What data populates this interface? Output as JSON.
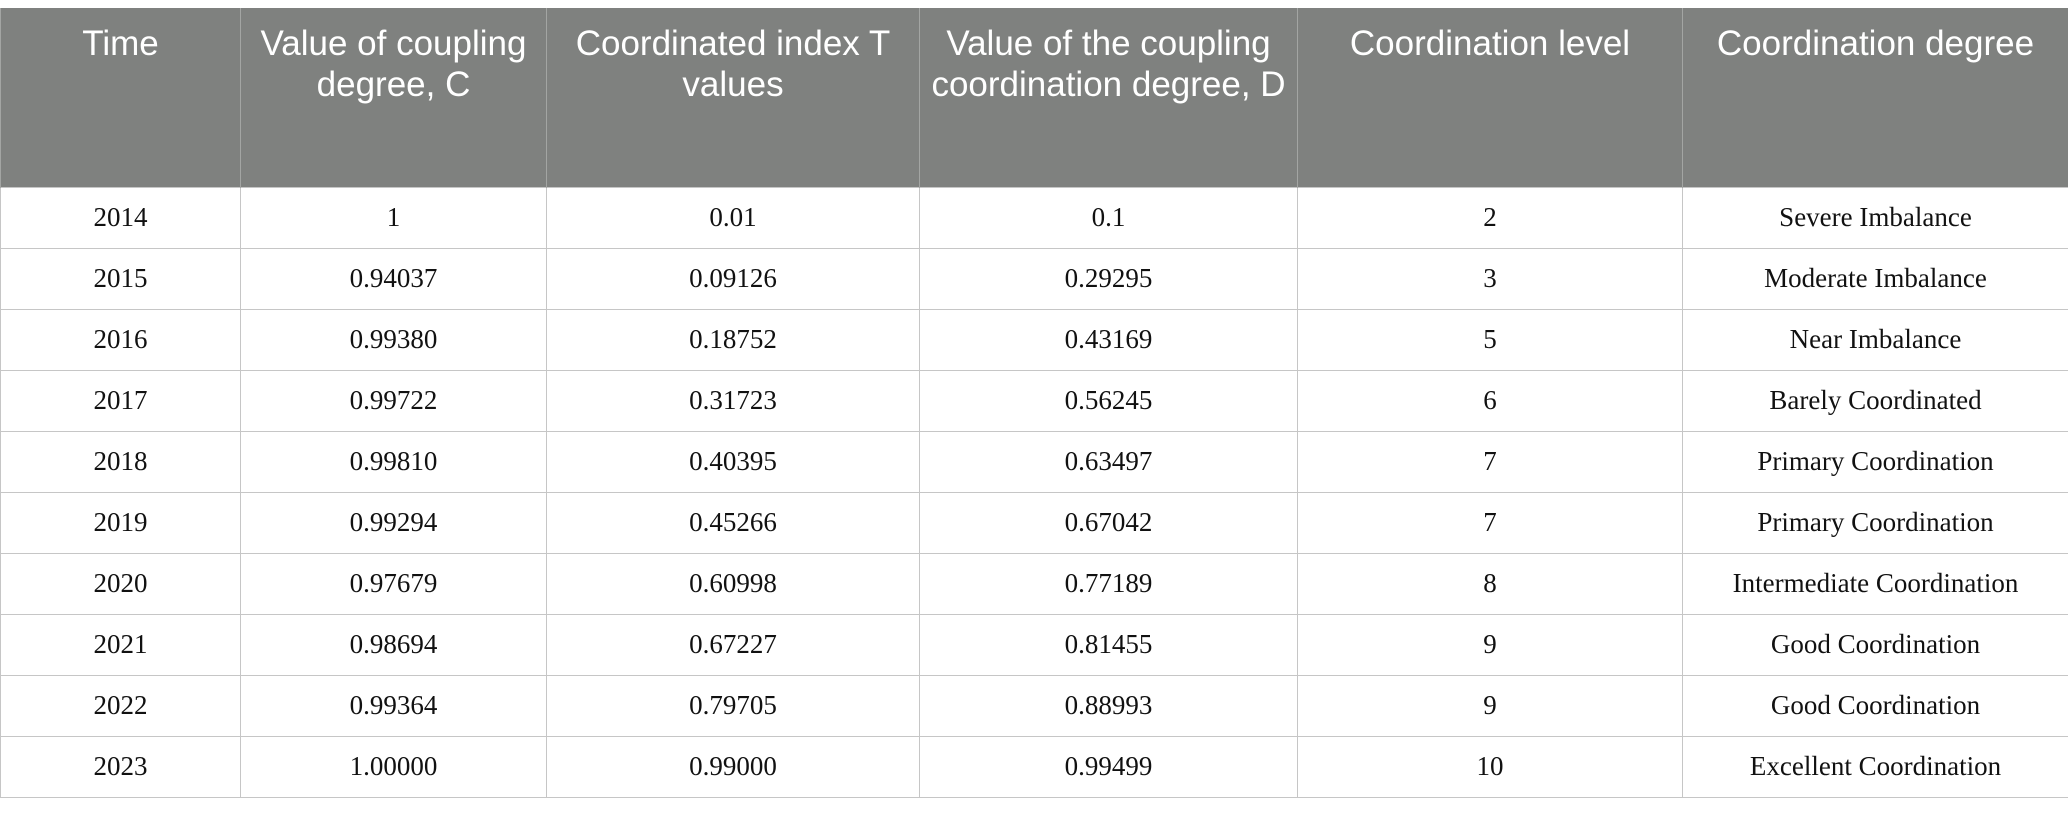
{
  "table": {
    "headers": [
      "Time",
      "Value of coupling degree, C",
      "Coordinated index T values",
      "Value of the coupling coordination degree, D",
      "Coordination level",
      "Coordination degree"
    ],
    "rows": [
      [
        "2014",
        "1",
        "0.01",
        "0.1",
        "2",
        "Severe Imbalance"
      ],
      [
        "2015",
        "0.94037",
        "0.09126",
        "0.29295",
        "3",
        "Moderate Imbalance"
      ],
      [
        "2016",
        "0.99380",
        "0.18752",
        "0.43169",
        "5",
        "Near Imbalance"
      ],
      [
        "2017",
        "0.99722",
        "0.31723",
        "0.56245",
        "6",
        "Barely Coordinated"
      ],
      [
        "2018",
        "0.99810",
        "0.40395",
        "0.63497",
        "7",
        "Primary Coordination"
      ],
      [
        "2019",
        "0.99294",
        "0.45266",
        "0.67042",
        "7",
        "Primary Coordination"
      ],
      [
        "2020",
        "0.97679",
        "0.60998",
        "0.77189",
        "8",
        "Intermediate Coordination"
      ],
      [
        "2021",
        "0.98694",
        "0.67227",
        "0.81455",
        "9",
        "Good Coordination"
      ],
      [
        "2022",
        "0.99364",
        "0.79705",
        "0.88993",
        "9",
        "Good Coordination"
      ],
      [
        "2023",
        "1.00000",
        "0.99000",
        "0.99499",
        "10",
        "Excellent Coordination"
      ]
    ]
  }
}
